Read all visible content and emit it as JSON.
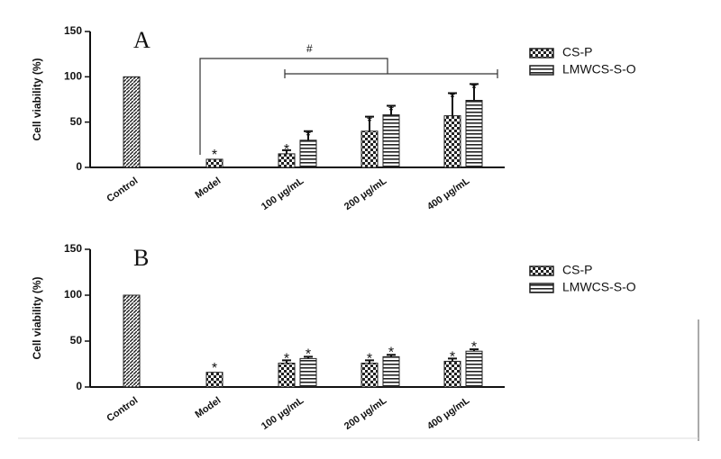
{
  "chart_data": [
    {
      "type": "bar",
      "title": "A",
      "ylabel": "Cell viability (%)",
      "categories": [
        "Control",
        "Model",
        "100 μg/mL",
        "200 μg/mL",
        "400 μg/mL"
      ],
      "series": [
        {
          "name": "CS-P",
          "color": "#222222",
          "values": [
            100,
            9,
            15,
            40,
            57
          ],
          "errors": [
            null,
            null,
            4,
            16,
            25
          ],
          "marks": [
            null,
            "*",
            "*",
            "*",
            "*"
          ]
        },
        {
          "name": "LMWCS-S-O",
          "color": "#222222",
          "values": [
            null,
            null,
            30,
            58,
            74
          ],
          "errors": [
            null,
            null,
            10,
            10,
            18
          ],
          "marks": [
            null,
            null,
            "*",
            "*",
            "*"
          ]
        }
      ],
      "annotation": "#",
      "ylim": [
        0,
        150
      ],
      "yticks": [
        0,
        50,
        100,
        150
      ]
    },
    {
      "type": "bar",
      "title": "B",
      "ylabel": "Cell viability (%)",
      "categories": [
        "Control",
        "Model",
        "100 μg/mL",
        "200 μg/mL",
        "400 μg/mL"
      ],
      "series": [
        {
          "name": "CS-P",
          "color": "#222222",
          "values": [
            100,
            16,
            26,
            26,
            28
          ],
          "errors": [
            null,
            null,
            3,
            3,
            3
          ],
          "marks": [
            null,
            "*",
            "*",
            "*",
            "*"
          ]
        },
        {
          "name": "LMWCS-S-O",
          "color": "#222222",
          "values": [
            null,
            null,
            31,
            33,
            39
          ],
          "errors": [
            null,
            null,
            2,
            2,
            2
          ],
          "marks": [
            null,
            null,
            "*",
            "*",
            "*"
          ]
        }
      ],
      "ylim": [
        0,
        150
      ],
      "yticks": [
        0,
        50,
        100,
        150
      ]
    }
  ]
}
